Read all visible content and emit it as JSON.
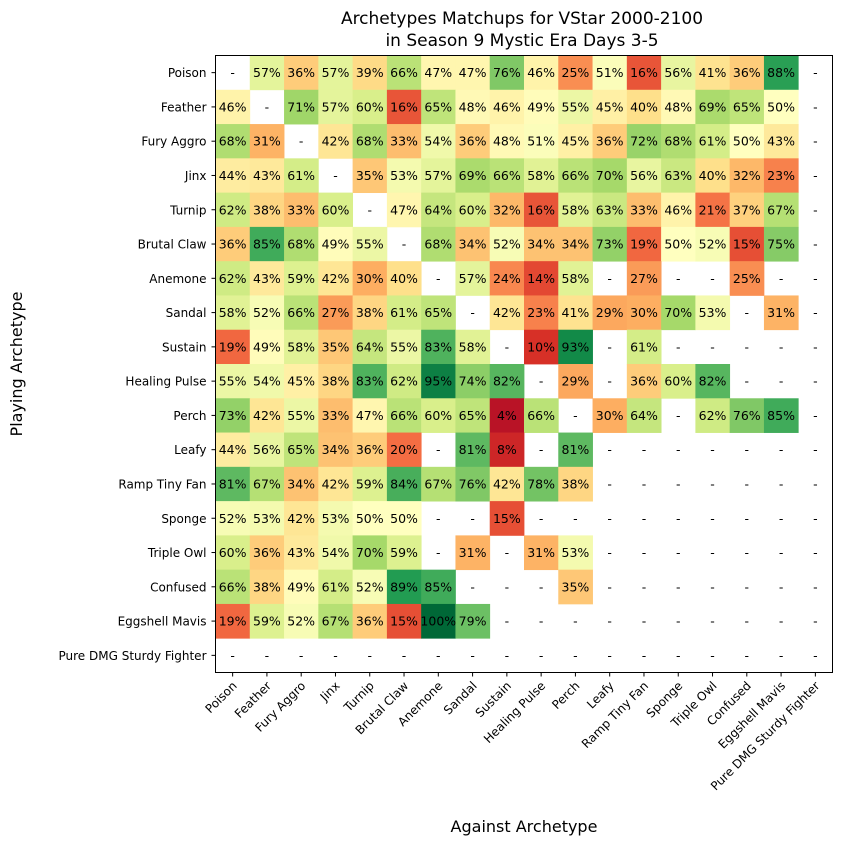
{
  "chart_data": {
    "type": "heatmap",
    "title": [
      "Archetypes Matchups for VStar 2000-2100",
      "in Season 9 Mystic Era Days 3-5"
    ],
    "xlabel": "Against Archetype",
    "ylabel": "Playing Archetype",
    "colormap": "RdYlGn",
    "value_range": [
      0,
      100
    ],
    "missing_label": "-",
    "rows": [
      "Poison",
      "Feather",
      "Fury Aggro",
      "Jinx",
      "Turnip",
      "Brutal Claw",
      "Anemone",
      "Sandal",
      "Sustain",
      "Healing Pulse",
      "Perch",
      "Leafy",
      "Ramp Tiny Fan",
      "Sponge",
      "Triple Owl",
      "Confused",
      "Eggshell Mavis",
      "Pure DMG Sturdy Fighter"
    ],
    "columns": [
      "Poison",
      "Feather",
      "Fury Aggro",
      "Jinx",
      "Turnip",
      "Brutal Claw",
      "Anemone",
      "Sandal",
      "Sustain",
      "Healing Pulse",
      "Perch",
      "Leafy",
      "Ramp Tiny Fan",
      "Sponge",
      "Triple Owl",
      "Confused",
      "Eggshell Mavis",
      "Pure DMG Sturdy Fighter"
    ],
    "values": [
      [
        null,
        57,
        36,
        57,
        39,
        66,
        47,
        47,
        76,
        46,
        25,
        51,
        16,
        56,
        41,
        36,
        88,
        null
      ],
      [
        46,
        null,
        71,
        57,
        60,
        16,
        65,
        48,
        46,
        49,
        55,
        45,
        40,
        48,
        69,
        65,
        50,
        null
      ],
      [
        68,
        31,
        null,
        42,
        68,
        33,
        54,
        36,
        48,
        51,
        45,
        36,
        72,
        68,
        61,
        50,
        43,
        null
      ],
      [
        44,
        43,
        61,
        null,
        35,
        53,
        57,
        69,
        66,
        58,
        66,
        70,
        56,
        63,
        40,
        32,
        23,
        null
      ],
      [
        62,
        38,
        33,
        60,
        null,
        47,
        64,
        60,
        32,
        16,
        58,
        63,
        33,
        46,
        21,
        37,
        67,
        null
      ],
      [
        36,
        85,
        68,
        49,
        55,
        null,
        68,
        34,
        52,
        34,
        34,
        73,
        19,
        50,
        52,
        15,
        75,
        null
      ],
      [
        62,
        43,
        59,
        42,
        30,
        40,
        null,
        57,
        24,
        14,
        58,
        null,
        27,
        null,
        null,
        25,
        null,
        null
      ],
      [
        58,
        52,
        66,
        27,
        38,
        61,
        65,
        null,
        42,
        23,
        41,
        29,
        30,
        70,
        53,
        null,
        31,
        null
      ],
      [
        19,
        49,
        58,
        35,
        64,
        55,
        83,
        58,
        null,
        10,
        93,
        null,
        61,
        null,
        null,
        null,
        null,
        null
      ],
      [
        55,
        54,
        45,
        38,
        83,
        62,
        95,
        74,
        82,
        null,
        29,
        null,
        36,
        60,
        82,
        null,
        null,
        null
      ],
      [
        73,
        42,
        55,
        33,
        47,
        66,
        60,
        65,
        4,
        66,
        null,
        30,
        64,
        null,
        62,
        76,
        85,
        null
      ],
      [
        44,
        56,
        65,
        34,
        36,
        20,
        null,
        81,
        8,
        null,
        81,
        null,
        null,
        null,
        null,
        null,
        null,
        null
      ],
      [
        81,
        67,
        34,
        42,
        59,
        84,
        67,
        76,
        42,
        78,
        38,
        null,
        null,
        null,
        null,
        null,
        null,
        null
      ],
      [
        52,
        53,
        42,
        53,
        50,
        50,
        null,
        null,
        15,
        null,
        null,
        null,
        null,
        null,
        null,
        null,
        null,
        null
      ],
      [
        60,
        36,
        43,
        54,
        70,
        59,
        null,
        31,
        null,
        31,
        53,
        null,
        null,
        null,
        null,
        null,
        null,
        null
      ],
      [
        66,
        38,
        49,
        61,
        52,
        89,
        85,
        null,
        null,
        null,
        35,
        null,
        null,
        null,
        null,
        null,
        null,
        null
      ],
      [
        19,
        59,
        52,
        67,
        36,
        15,
        100,
        79,
        null,
        null,
        null,
        null,
        null,
        null,
        null,
        null,
        null,
        null
      ],
      [
        null,
        null,
        null,
        null,
        null,
        null,
        null,
        null,
        null,
        null,
        null,
        null,
        null,
        null,
        null,
        null,
        null,
        null
      ]
    ]
  }
}
